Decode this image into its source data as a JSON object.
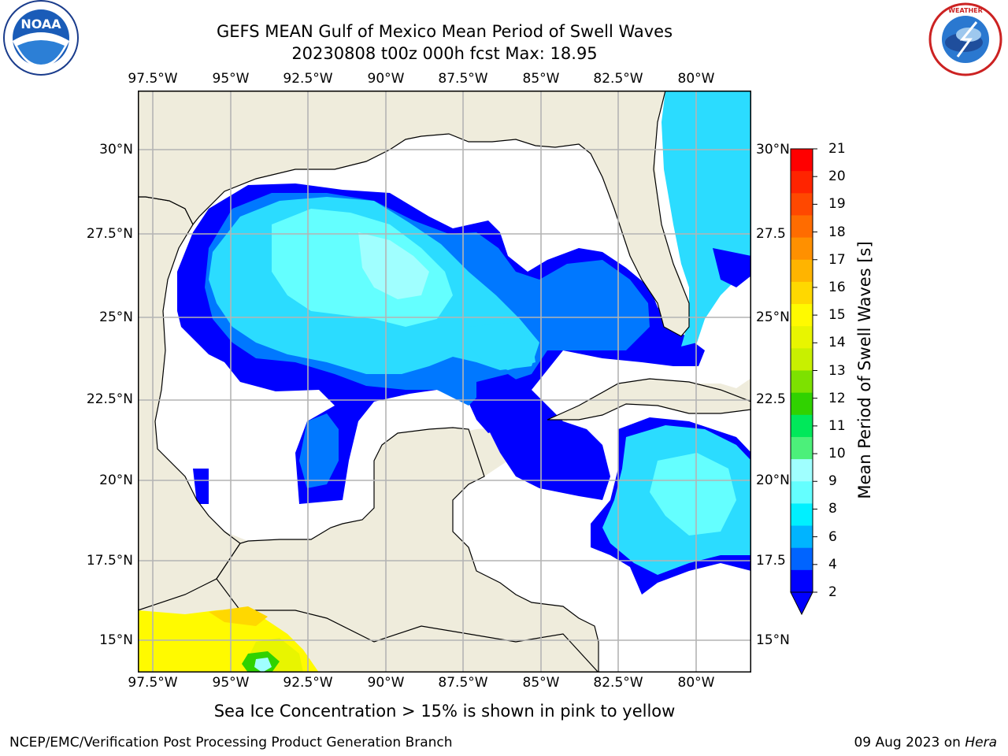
{
  "title": {
    "line1": "GEFS MEAN Gulf of Mexico Mean Period of Swell Waves",
    "line2": "20230808 t00z 000h fcst   Max: 18.95"
  },
  "logos": {
    "left": {
      "text": "NOAA",
      "ring_text": "NATIONAL OCEANIC AND ATMOSPHERIC ADMINISTRATION · U.S. DEPARTMENT OF COMMERCE"
    },
    "right": {
      "ring_text": "NATIONAL WEATHER SERVICE"
    }
  },
  "map": {
    "x_ticks_top": [
      "97.5°W",
      "95°W",
      "92.5°W",
      "90°W",
      "87.5°W",
      "85°W",
      "82.5°W",
      "80°W"
    ],
    "x_ticks_bottom": [
      "97.5°W",
      "95°W",
      "92.5°W",
      "90°W",
      "87.5°W",
      "85°W",
      "82.5°W",
      "80°W"
    ],
    "y_ticks_left": [
      "30°N",
      "27.5°N",
      "25°N",
      "22.5°N",
      "20°N",
      "17.5°N",
      "15°N"
    ],
    "y_ticks_right": [
      "30°N",
      "27.5",
      "25°N",
      "22.5",
      "20°N",
      "17.5",
      "15°N"
    ],
    "lon_range": [
      -98,
      -78.3
    ],
    "lat_range": [
      14,
      31.5
    ],
    "colors": {
      "land": "#efecdc",
      "ocean_blank": "#ffffff",
      "grid": "#b4b4b4"
    }
  },
  "colorbar": {
    "label": "Mean Period of Swell Waves [s]",
    "ticks": [
      "21",
      "20",
      "19",
      "18",
      "17",
      "16",
      "15",
      "14",
      "13",
      "12",
      "11",
      "10",
      "9",
      "8",
      "6",
      "4",
      "2"
    ],
    "colors": [
      "#ff0000",
      "#ff2400",
      "#ff4800",
      "#ff6c00",
      "#ff9000",
      "#ffb400",
      "#ffd800",
      "#fffa00",
      "#e8f500",
      "#c8f000",
      "#7de100",
      "#30d200",
      "#00e85a",
      "#4cf07a",
      "#a0ffff",
      "#64ffff",
      "#00f0ff",
      "#00b4ff",
      "#0064ff",
      "#0000ff"
    ]
  },
  "subtitle": "Sea Ice Concentration > 15% is shown in pink to yellow",
  "footer": {
    "left": "NCEP/EMC/Verification Post Processing Product Generation Branch",
    "right_prefix": "09 Aug 2023 on ",
    "right_host": "Hera"
  }
}
